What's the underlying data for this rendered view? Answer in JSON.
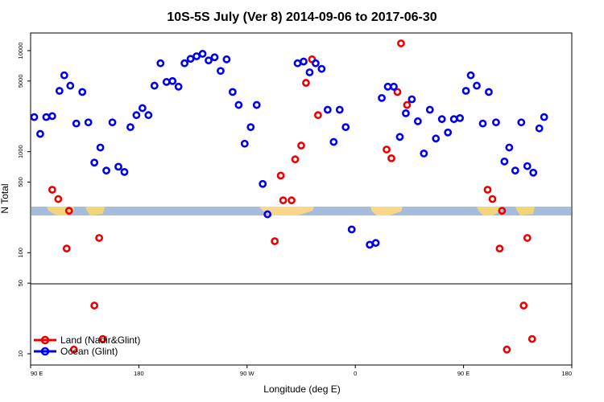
{
  "chart_data": {
    "type": "scatter",
    "title": "10S-5S July (Ver 8)   2014-09-06 to 2017-06-30",
    "xlabel": "Longitude (deg E)",
    "ylabel": "N Total",
    "y_scale": "log",
    "x_ticks": [
      {
        "value": 90,
        "label": "90 E"
      },
      {
        "value": 180,
        "label": "180"
      },
      {
        "value": 270,
        "label": "90 W"
      },
      {
        "value": 360,
        "label": "0"
      },
      {
        "value": 450,
        "label": "90 E"
      },
      {
        "value": 540,
        "label": "180"
      }
    ],
    "xlim": [
      90,
      540
    ],
    "y_ticks": [
      {
        "value": 10,
        "label": "10"
      },
      {
        "value": 50,
        "label": "50"
      },
      {
        "value": 100,
        "label": "100"
      },
      {
        "value": 500,
        "label": "500"
      },
      {
        "value": 1000,
        "label": "1000"
      },
      {
        "value": 5000,
        "label": "5000"
      },
      {
        "value": 10000,
        "label": "10000"
      }
    ],
    "ylim": [
      7,
      15000
    ],
    "split_at": 50,
    "legend_position": "bottom-left",
    "series": [
      {
        "name": "Land (Nadir&Glint)",
        "color": "#ee0000",
        "points": [
          [
            108,
            420
          ],
          [
            113,
            340
          ],
          [
            120,
            110
          ],
          [
            122,
            260
          ],
          [
            126,
            11
          ],
          [
            143,
            30
          ],
          [
            147,
            140
          ],
          [
            150,
            14
          ],
          [
            293,
            130
          ],
          [
            298,
            580
          ],
          [
            300,
            330
          ],
          [
            307,
            330
          ],
          [
            310,
            840
          ],
          [
            315,
            1150
          ],
          [
            319,
            4800
          ],
          [
            324,
            8200
          ],
          [
            329,
            2300
          ],
          [
            386,
            1050
          ],
          [
            390,
            860
          ],
          [
            395,
            3900
          ],
          [
            398,
            11800
          ],
          [
            403,
            2900
          ],
          [
            470,
            420
          ],
          [
            474,
            340
          ],
          [
            480,
            110
          ],
          [
            482,
            260
          ],
          [
            486,
            11
          ],
          [
            500,
            30
          ],
          [
            503,
            140
          ],
          [
            507,
            14
          ]
        ]
      },
      {
        "name": "Ocean (Glint)",
        "color": "#0000ee",
        "points": [
          [
            93,
            2200
          ],
          [
            98,
            1500
          ],
          [
            103,
            2200
          ],
          [
            108,
            2250
          ],
          [
            114,
            4000
          ],
          [
            118,
            5700
          ],
          [
            123,
            4500
          ],
          [
            128,
            1900
          ],
          [
            133,
            3900
          ],
          [
            138,
            1950
          ],
          [
            143,
            780
          ],
          [
            148,
            1100
          ],
          [
            153,
            650
          ],
          [
            158,
            1950
          ],
          [
            163,
            710
          ],
          [
            168,
            630
          ],
          [
            173,
            1750
          ],
          [
            178,
            2300
          ],
          [
            183,
            2700
          ],
          [
            188,
            2300
          ],
          [
            193,
            4500
          ],
          [
            198,
            7500
          ],
          [
            203,
            4900
          ],
          [
            208,
            5000
          ],
          [
            213,
            4400
          ],
          [
            218,
            7500
          ],
          [
            223,
            8300
          ],
          [
            228,
            8800
          ],
          [
            233,
            9300
          ],
          [
            238,
            8000
          ],
          [
            243,
            8600
          ],
          [
            248,
            6300
          ],
          [
            253,
            8200
          ],
          [
            258,
            3900
          ],
          [
            263,
            2900
          ],
          [
            268,
            1200
          ],
          [
            273,
            1750
          ],
          [
            278,
            2900
          ],
          [
            283,
            480
          ],
          [
            287,
            240
          ],
          [
            312,
            7500
          ],
          [
            317,
            7800
          ],
          [
            322,
            6100
          ],
          [
            327,
            7500
          ],
          [
            332,
            6600
          ],
          [
            337,
            2600
          ],
          [
            342,
            1250
          ],
          [
            347,
            2600
          ],
          [
            352,
            1750
          ],
          [
            357,
            170
          ],
          [
            372,
            120
          ],
          [
            377,
            125
          ],
          [
            382,
            3400
          ],
          [
            387,
            4400
          ],
          [
            392,
            4400
          ],
          [
            397,
            1400
          ],
          [
            402,
            2400
          ],
          [
            407,
            3300
          ],
          [
            412,
            2000
          ],
          [
            417,
            960
          ],
          [
            422,
            2600
          ],
          [
            427,
            1350
          ],
          [
            432,
            2100
          ],
          [
            437,
            1550
          ],
          [
            442,
            2100
          ],
          [
            447,
            2150
          ],
          [
            452,
            4000
          ],
          [
            456,
            5700
          ],
          [
            461,
            4500
          ],
          [
            466,
            1900
          ],
          [
            471,
            3900
          ],
          [
            477,
            1950
          ],
          [
            484,
            800
          ],
          [
            488,
            1100
          ],
          [
            493,
            650
          ],
          [
            498,
            1950
          ],
          [
            503,
            720
          ],
          [
            508,
            620
          ],
          [
            513,
            1700
          ],
          [
            517,
            2200
          ]
        ]
      }
    ]
  }
}
